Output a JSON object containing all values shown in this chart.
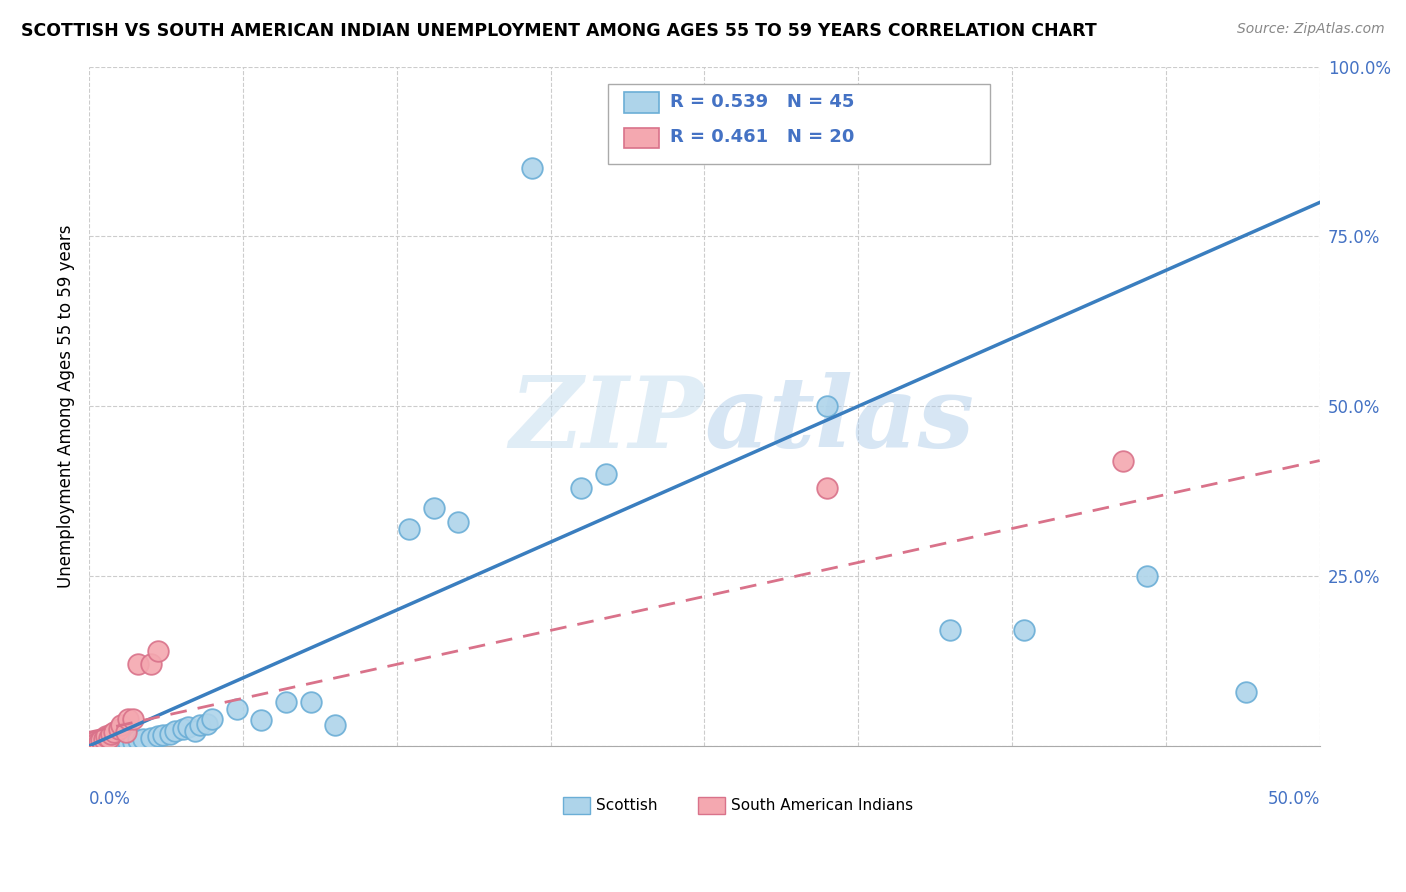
{
  "title": "SCOTTISH VS SOUTH AMERICAN INDIAN UNEMPLOYMENT AMONG AGES 55 TO 59 YEARS CORRELATION CHART",
  "source": "Source: ZipAtlas.com",
  "ylabel": "Unemployment Among Ages 55 to 59 years",
  "xlim": [
    0.0,
    0.5
  ],
  "ylim": [
    0.0,
    1.0
  ],
  "watermark": "ZIPatlas",
  "scottish_color": "#aed4ea",
  "scottish_edge": "#6baed6",
  "sa_indian_color": "#f4a8b0",
  "sa_indian_edge": "#d9728a",
  "trend_scottish_color": "#3a7ebf",
  "trend_sa_color": "#d9728a",
  "scottish_trend": [
    0.0,
    0.0,
    0.5,
    0.8
  ],
  "sa_trend": [
    0.0,
    0.02,
    0.5,
    0.42
  ],
  "scottish_points": [
    [
      0.001,
      0.002
    ],
    [
      0.002,
      0.003
    ],
    [
      0.003,
      0.001
    ],
    [
      0.004,
      0.002
    ],
    [
      0.005,
      0.003
    ],
    [
      0.005,
      0.005
    ],
    [
      0.006,
      0.002
    ],
    [
      0.007,
      0.004
    ],
    [
      0.008,
      0.003
    ],
    [
      0.009,
      0.005
    ],
    [
      0.01,
      0.004
    ],
    [
      0.012,
      0.003
    ],
    [
      0.013,
      0.005
    ],
    [
      0.015,
      0.004
    ],
    [
      0.016,
      0.006
    ],
    [
      0.018,
      0.006
    ],
    [
      0.02,
      0.008
    ],
    [
      0.022,
      0.01
    ],
    [
      0.025,
      0.012
    ],
    [
      0.028,
      0.015
    ],
    [
      0.03,
      0.016
    ],
    [
      0.033,
      0.018
    ],
    [
      0.035,
      0.022
    ],
    [
      0.038,
      0.025
    ],
    [
      0.04,
      0.028
    ],
    [
      0.043,
      0.022
    ],
    [
      0.045,
      0.03
    ],
    [
      0.048,
      0.032
    ],
    [
      0.05,
      0.04
    ],
    [
      0.06,
      0.055
    ],
    [
      0.07,
      0.038
    ],
    [
      0.08,
      0.065
    ],
    [
      0.09,
      0.065
    ],
    [
      0.1,
      0.03
    ],
    [
      0.13,
      0.32
    ],
    [
      0.14,
      0.35
    ],
    [
      0.15,
      0.33
    ],
    [
      0.2,
      0.38
    ],
    [
      0.21,
      0.4
    ],
    [
      0.3,
      0.5
    ],
    [
      0.35,
      0.17
    ],
    [
      0.38,
      0.17
    ],
    [
      0.43,
      0.25
    ],
    [
      0.47,
      0.08
    ],
    [
      0.18,
      0.85
    ]
  ],
  "sa_points": [
    [
      0.001,
      0.003
    ],
    [
      0.002,
      0.005
    ],
    [
      0.003,
      0.004
    ],
    [
      0.004,
      0.006
    ],
    [
      0.005,
      0.008
    ],
    [
      0.006,
      0.01
    ],
    [
      0.007,
      0.015
    ],
    [
      0.008,
      0.012
    ],
    [
      0.009,
      0.018
    ],
    [
      0.01,
      0.02
    ],
    [
      0.012,
      0.025
    ],
    [
      0.013,
      0.03
    ],
    [
      0.015,
      0.02
    ],
    [
      0.016,
      0.04
    ],
    [
      0.018,
      0.04
    ],
    [
      0.02,
      0.12
    ],
    [
      0.025,
      0.12
    ],
    [
      0.028,
      0.14
    ],
    [
      0.3,
      0.38
    ],
    [
      0.42,
      0.42
    ]
  ]
}
